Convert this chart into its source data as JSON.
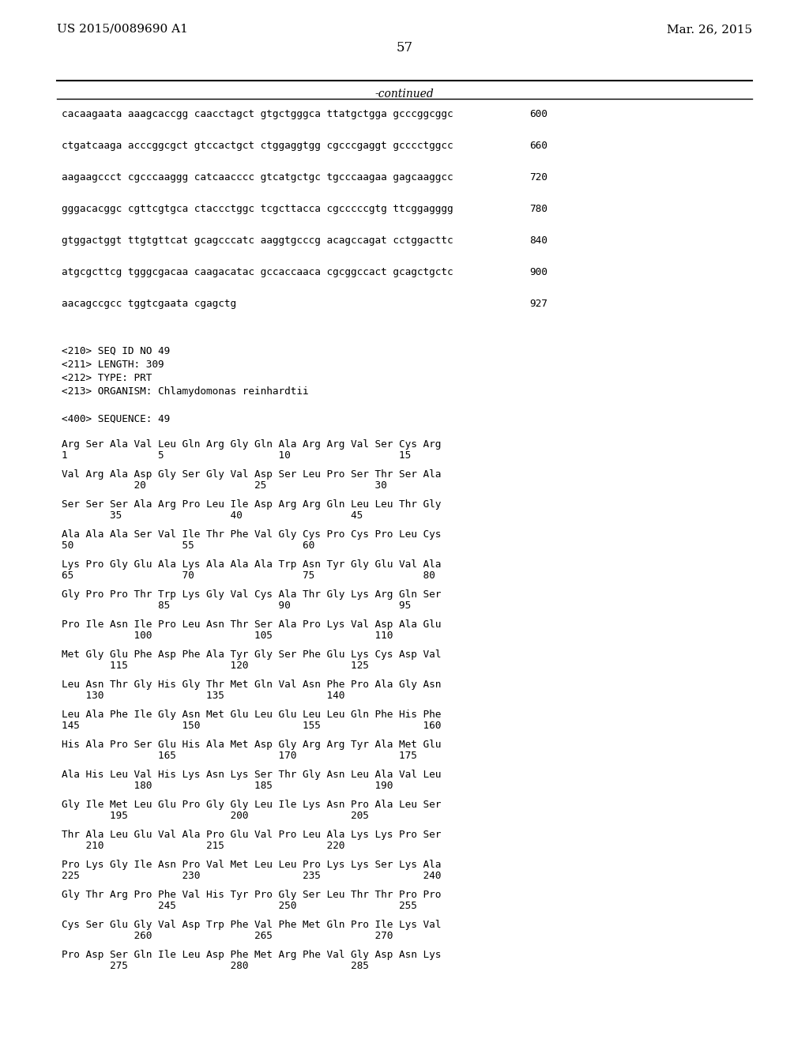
{
  "header_left": "US 2015/0089690 A1",
  "header_right": "Mar. 26, 2015",
  "page_number": "57",
  "continued_label": "-continued",
  "background_color": "#ffffff",
  "text_color": "#000000",
  "dna_lines": [
    [
      "cacaagaata aaagcaccgg caacctagct gtgctgggca ttatgctgga gcccggcggc",
      "600"
    ],
    [
      "ctgatcaaga acccggcgct gtccactgct ctggaggtgg cgcccgaggt gcccctggcc",
      "660"
    ],
    [
      "aagaagccct cgcccaaggg catcaacccc gtcatgctgc tgcccaagaa gagcaaggcc",
      "720"
    ],
    [
      "gggacacggc cgttcgtgca ctaccctggc tcgcttacca cgcccccgtg ttcggagggg",
      "780"
    ],
    [
      "gtggactggt ttgtgttcat gcagcccatc aaggtgcccg acagccagat cctggacttc",
      "840"
    ],
    [
      "atgcgcttcg tgggcgacaa caagacatac gccaccaaca cgcggccact gcagctgctc",
      "900"
    ],
    [
      "aacagccgcc tggtcgaata cgagctg",
      "927"
    ]
  ],
  "seq_info": [
    "<210> SEQ ID NO 49",
    "<211> LENGTH: 309",
    "<212> TYPE: PRT",
    "<213> ORGANISM: Chlamydomonas reinhardtii"
  ],
  "seq400": "<400> SEQUENCE: 49",
  "aa_blocks": [
    {
      "seq": "Arg Ser Ala Val Leu Gln Arg Gly Gln Ala Arg Arg Val Ser Cys Arg",
      "nums": "1               5                   10                  15"
    },
    {
      "seq": "Val Arg Ala Asp Gly Ser Gly Val Asp Ser Leu Pro Ser Thr Ser Ala",
      "nums": "            20                  25                  30"
    },
    {
      "seq": "Ser Ser Ser Ala Arg Pro Leu Ile Asp Arg Arg Gln Leu Leu Thr Gly",
      "nums": "        35                  40                  45"
    },
    {
      "seq": "Ala Ala Ala Ser Val Ile Thr Phe Val Gly Cys Pro Cys Pro Leu Cys",
      "nums": "50                  55                  60"
    },
    {
      "seq": "Lys Pro Gly Glu Ala Lys Ala Ala Ala Trp Asn Tyr Gly Glu Val Ala",
      "nums": "65                  70                  75                  80"
    },
    {
      "seq": "Gly Pro Pro Thr Trp Lys Gly Val Cys Ala Thr Gly Lys Arg Gln Ser",
      "nums": "                85                  90                  95"
    },
    {
      "seq": "Pro Ile Asn Ile Pro Leu Asn Thr Ser Ala Pro Lys Val Asp Ala Glu",
      "nums": "            100                 105                 110"
    },
    {
      "seq": "Met Gly Glu Phe Asp Phe Ala Tyr Gly Ser Phe Glu Lys Cys Asp Val",
      "nums": "        115                 120                 125"
    },
    {
      "seq": "Leu Asn Thr Gly His Gly Thr Met Gln Val Asn Phe Pro Ala Gly Asn",
      "nums": "    130                 135                 140"
    },
    {
      "seq": "Leu Ala Phe Ile Gly Asn Met Glu Leu Glu Leu Leu Gln Phe His Phe",
      "nums": "145                 150                 155                 160"
    },
    {
      "seq": "His Ala Pro Ser Glu His Ala Met Asp Gly Arg Arg Tyr Ala Met Glu",
      "nums": "                165                 170                 175"
    },
    {
      "seq": "Ala His Leu Val His Lys Asn Lys Ser Thr Gly Asn Leu Ala Val Leu",
      "nums": "            180                 185                 190"
    },
    {
      "seq": "Gly Ile Met Leu Glu Pro Gly Gly Leu Ile Lys Asn Pro Ala Leu Ser",
      "nums": "        195                 200                 205"
    },
    {
      "seq": "Thr Ala Leu Glu Val Ala Pro Glu Val Pro Leu Ala Lys Lys Pro Ser",
      "nums": "    210                 215                 220"
    },
    {
      "seq": "Pro Lys Gly Ile Asn Pro Val Met Leu Leu Pro Lys Lys Ser Lys Ala",
      "nums": "225                 230                 235                 240"
    },
    {
      "seq": "Gly Thr Arg Pro Phe Val His Tyr Pro Gly Ser Leu Thr Thr Pro Pro",
      "nums": "                245                 250                 255"
    },
    {
      "seq": "Cys Ser Glu Gly Val Asp Trp Phe Val Phe Met Gln Pro Ile Lys Val",
      "nums": "            260                 265                 270"
    },
    {
      "seq": "Pro Asp Ser Gln Ile Leu Asp Phe Met Arg Phe Val Gly Asp Asn Lys",
      "nums": "        275                 280                 285"
    }
  ]
}
